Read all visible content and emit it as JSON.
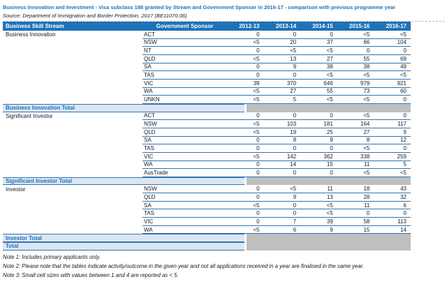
{
  "title": "Business Innovation and Investment - Visa subclass 188 granted by Stream and Government Sponsor in 2016-17 - comparison with previous programme year",
  "source": "Source: Department of Immigration and Border Protection, 2017 (BE11070.06)",
  "colors": {
    "accent_blue": "#1f72b8",
    "border_blue": "#2e74b5",
    "total_row_bg": "#dce6f1",
    "total_gray_block": "#bfbfbf",
    "header_text": "#ffffff"
  },
  "table": {
    "columns": [
      "Business Skill Stream",
      "Government Sponsor",
      "2012-13",
      "2013-14",
      "2014-15",
      "2015-16",
      "2016-17"
    ],
    "groups": [
      {
        "stream": "Business Innovation",
        "total_label": "Business Innovation Total",
        "rows": [
          {
            "sponsor": "ACT",
            "values": [
              "0",
              "0",
              "0",
              "<5",
              "<5"
            ]
          },
          {
            "sponsor": "NSW",
            "values": [
              "<5",
              "20",
              "37",
              "66",
              "104"
            ]
          },
          {
            "sponsor": "NT",
            "values": [
              "0",
              "<5",
              "<5",
              "0",
              "0"
            ]
          },
          {
            "sponsor": "QLD",
            "values": [
              "<5",
              "13",
              "27",
              "55",
              "69"
            ]
          },
          {
            "sponsor": "SA",
            "values": [
              "0",
              "9",
              "38",
              "38",
              "49"
            ]
          },
          {
            "sponsor": "TAS",
            "values": [
              "0",
              "0",
              "<5",
              "<5",
              "<5"
            ]
          },
          {
            "sponsor": "VIC",
            "values": [
              "39",
              "370",
              "646",
              "979",
              "921"
            ]
          },
          {
            "sponsor": "WA",
            "values": [
              "<5",
              "27",
              "55",
              "73",
              "60"
            ]
          },
          {
            "sponsor": "UNKN",
            "values": [
              "<5",
              "5",
              "<5",
              "<5",
              "0"
            ]
          }
        ]
      },
      {
        "stream": "Significant Investor",
        "total_label": "Significant Investor Total",
        "rows": [
          {
            "sponsor": "ACT",
            "values": [
              "0",
              "0",
              "0",
              "<5",
              "0"
            ]
          },
          {
            "sponsor": "NSW",
            "values": [
              "<5",
              "103",
              "181",
              "164",
              "117"
            ]
          },
          {
            "sponsor": "QLD",
            "values": [
              "<5",
              "19",
              "25",
              "27",
              "9"
            ]
          },
          {
            "sponsor": "SA",
            "values": [
              "0",
              "8",
              "9",
              "8",
              "12"
            ]
          },
          {
            "sponsor": "TAS",
            "values": [
              "0",
              "0",
              "0",
              "<5",
              "0"
            ]
          },
          {
            "sponsor": "VIC",
            "values": [
              "<5",
              "142",
              "362",
              "338",
              "259"
            ]
          },
          {
            "sponsor": "WA",
            "values": [
              "0",
              "14",
              "15",
              "11",
              "5"
            ]
          },
          {
            "sponsor": "AusTrade",
            "values": [
              "0",
              "0",
              "0",
              "<5",
              "<5"
            ]
          }
        ]
      },
      {
        "stream": "Investor",
        "total_label": "Investor Total",
        "rows": [
          {
            "sponsor": "NSW",
            "values": [
              "0",
              "<5",
              "11",
              "18",
              "43"
            ]
          },
          {
            "sponsor": "QLD",
            "values": [
              "0",
              "9",
              "13",
              "28",
              "32"
            ]
          },
          {
            "sponsor": "SA",
            "values": [
              "<5",
              "0",
              "<5",
              "11",
              "6"
            ]
          },
          {
            "sponsor": "TAS",
            "values": [
              "0",
              "0",
              "<5",
              "0",
              "0"
            ]
          },
          {
            "sponsor": "VIC",
            "values": [
              "0",
              "7",
              "39",
              "58",
              "113"
            ]
          },
          {
            "sponsor": "WA",
            "values": [
              "<5",
              "6",
              "9",
              "15",
              "14"
            ]
          }
        ]
      }
    ],
    "grand_total_label": "Total"
  },
  "notes": [
    "Note 1: Includes primary applicants only.",
    "Note 2: Please note that the tables indicate activity/outcome in the given year and not all applications received in a year are finalised in the same year.",
    "Note 3: Small cell sizes with values between 1 and 4 are reported as < 5."
  ]
}
